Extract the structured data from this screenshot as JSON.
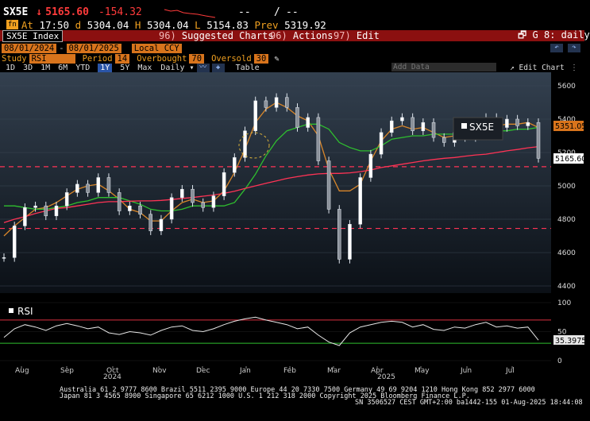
{
  "quote": {
    "ticker": "SX5E",
    "arrow": "↓",
    "last": "5165.60",
    "change": "-154.32",
    "sparkline_dash": "--",
    "sparkline_sep": "/",
    "time_label": "At",
    "time": "17:50",
    "open_label": "d",
    "open": "5304.04",
    "high_label": "H",
    "high": "5304.04",
    "low_label": "L",
    "low": "5154.83",
    "prev_label": "Prev",
    "prev": "5319.92",
    "badge": "fn"
  },
  "menu": {
    "security": "SX5E Index",
    "suggested_num": "96)",
    "suggested": "Suggested Charts",
    "actions_num": "96)",
    "actions": "Actions",
    "edit_num": "97)",
    "edit": "Edit",
    "page": "G 8: daily"
  },
  "params": {
    "start": "08/01/2024",
    "end": "08/01/2025",
    "currency": "Local CCY",
    "study_label": "Study",
    "study": "RSI",
    "period_label": "Period",
    "period": "14",
    "overbought_label": "Overbought",
    "overbought": "70",
    "oversold_label": "Oversold",
    "oversold": "30"
  },
  "toolbar": {
    "ranges": [
      "1D",
      "3D",
      "1M",
      "6M",
      "YTD",
      "1Y",
      "5Y",
      "Max"
    ],
    "selected_range": "1Y",
    "frequency": "Daily",
    "table": "Table",
    "add_data": "Add Data",
    "edit_chart": "Edit Chart"
  },
  "chart_data": {
    "type": "line",
    "title": "",
    "price_axis": {
      "ticks": [
        4400,
        4600,
        4800,
        5000,
        5200,
        5400,
        5600
      ],
      "ylim": [
        4350,
        5650
      ]
    },
    "rsi_axis": {
      "ticks": [
        0,
        50,
        100
      ],
      "ylim": [
        -5,
        105
      ]
    },
    "x_month_labels": [
      "Aug",
      "Sep",
      "Oct",
      "Nov",
      "Dec",
      "Jan",
      "Feb",
      "Mar",
      "Apr",
      "May",
      "Jun",
      "Jul"
    ],
    "year_labels": [
      "2024",
      "2025"
    ],
    "legend_label": "SX5E",
    "rsi_label": "RSI",
    "last_price_tag": "5165.60",
    "ma_tag": "5351.05",
    "rsi_tag": "35.3975",
    "horizontal_levels": [
      5115,
      4745
    ],
    "rsi_levels": [
      70,
      30
    ],
    "series": [
      {
        "name": "SX5E",
        "kind": "candles",
        "color": "#ffffff",
        "close_x": [
          0,
          5,
          10,
          15,
          20,
          25,
          30,
          35,
          40,
          45,
          50,
          55,
          60,
          65,
          70,
          75,
          80,
          85,
          90,
          95,
          100,
          105,
          110,
          115,
          120,
          125,
          130,
          135,
          140,
          145,
          150,
          155,
          160,
          165,
          170,
          175,
          180,
          185,
          190,
          195,
          200,
          205,
          210,
          215,
          220,
          225,
          230,
          235,
          240,
          245,
          250,
          255
        ],
        "close_y": [
          4570,
          4760,
          4870,
          4880,
          4820,
          4880,
          4960,
          5010,
          4960,
          5050,
          4960,
          4850,
          4880,
          4830,
          4730,
          4800,
          4930,
          4980,
          4900,
          4870,
          4940,
          5080,
          5170,
          5330,
          5510,
          5470,
          5530,
          5470,
          5350,
          5410,
          5150,
          4860,
          4560,
          4770,
          5050,
          5190,
          5320,
          5390,
          5410,
          5330,
          5380,
          5290,
          5260,
          5320,
          5290,
          5380,
          5410,
          5350,
          5400,
          5360,
          5380,
          5165
        ]
      },
      {
        "name": "",
        "kind": "line",
        "color": "#d8862a",
        "y": [
          4700,
          4760,
          4810,
          4860,
          4870,
          4900,
          4940,
          4980,
          5000,
          5010,
          4970,
          4920,
          4860,
          4840,
          4790,
          4790,
          4850,
          4900,
          4920,
          4900,
          4910,
          4970,
          5080,
          5220,
          5380,
          5460,
          5500,
          5470,
          5420,
          5390,
          5300,
          5100,
          4970,
          4970,
          5010,
          5150,
          5270,
          5340,
          5360,
          5340,
          5350,
          5320,
          5290,
          5300,
          5300,
          5330,
          5360,
          5360,
          5370,
          5370,
          5380,
          5350
        ]
      },
      {
        "name": "",
        "kind": "line",
        "color": "#2fbf2f",
        "y": [
          4880,
          4880,
          4870,
          4860,
          4860,
          4870,
          4880,
          4900,
          4910,
          4930,
          4930,
          4930,
          4910,
          4890,
          4860,
          4850,
          4850,
          4860,
          4880,
          4880,
          4880,
          4880,
          4900,
          4980,
          5070,
          5180,
          5270,
          5330,
          5350,
          5370,
          5370,
          5340,
          5260,
          5230,
          5210,
          5210,
          5240,
          5280,
          5290,
          5300,
          5300,
          5310,
          5310,
          5310,
          5310,
          5320,
          5330,
          5330,
          5330,
          5340,
          5340,
          5351
        ]
      },
      {
        "name": "",
        "kind": "line",
        "color": "#ff3355",
        "y": [
          4780,
          4800,
          4815,
          4835,
          4850,
          4865,
          4870,
          4880,
          4890,
          4900,
          4905,
          4905,
          4908,
          4910,
          4910,
          4913,
          4918,
          4925,
          4930,
          4938,
          4945,
          4955,
          4968,
          4985,
          5000,
          5015,
          5030,
          5045,
          5055,
          5065,
          5072,
          5075,
          5075,
          5078,
          5085,
          5095,
          5110,
          5120,
          5130,
          5140,
          5150,
          5158,
          5165,
          5170,
          5178,
          5185,
          5190,
          5200,
          5210,
          5218,
          5228,
          5235
        ]
      },
      {
        "name": "RSI",
        "kind": "rsi",
        "color": "#e6e6e6",
        "y": [
          40,
          55,
          62,
          58,
          52,
          60,
          64,
          60,
          55,
          58,
          48,
          45,
          50,
          48,
          44,
          52,
          58,
          60,
          52,
          50,
          55,
          62,
          68,
          72,
          75,
          70,
          66,
          62,
          55,
          58,
          44,
          32,
          26,
          48,
          58,
          62,
          66,
          68,
          66,
          58,
          62,
          54,
          52,
          58,
          56,
          62,
          66,
          58,
          60,
          56,
          58,
          35.4
        ]
      }
    ]
  }
}
